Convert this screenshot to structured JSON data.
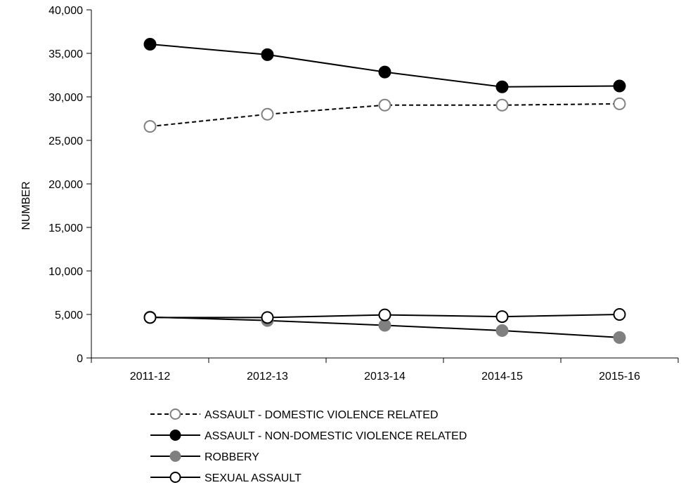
{
  "chart_data": {
    "type": "line",
    "title": "",
    "xlabel": "",
    "ylabel": "NUMBER",
    "ylim": [
      0,
      40000
    ],
    "y_ticks": [
      0,
      5000,
      10000,
      15000,
      20000,
      25000,
      30000,
      35000,
      40000
    ],
    "y_tick_labels": [
      "0",
      "5,000",
      "10,000",
      "15,000",
      "20,000",
      "25,000",
      "30,000",
      "35,000",
      "40,000"
    ],
    "categories": [
      "2011-12",
      "2012-13",
      "2013-14",
      "2014-15",
      "2015-16"
    ],
    "grid": false,
    "legend_position": "bottom",
    "series": [
      {
        "name": "ASSAULT - DOMESTIC VIOLENCE RELATED",
        "values": [
          26600,
          28000,
          29050,
          29050,
          29200
        ],
        "line_style": "dashed",
        "line_color": "#000000",
        "marker_fill": "#ffffff",
        "marker_stroke": "#808080"
      },
      {
        "name": "ASSAULT - NON-DOMESTIC VIOLENCE RELATED",
        "values": [
          36050,
          34850,
          32850,
          31150,
          31250
        ],
        "line_style": "solid",
        "line_color": "#000000",
        "marker_fill": "#000000",
        "marker_stroke": "#000000"
      },
      {
        "name": "ROBBERY",
        "values": [
          4700,
          4300,
          3750,
          3150,
          2350
        ],
        "line_style": "solid",
        "line_color": "#000000",
        "marker_fill": "#808080",
        "marker_stroke": "#808080"
      },
      {
        "name": "SEXUAL ASSAULT",
        "values": [
          4650,
          4650,
          4950,
          4750,
          5000
        ],
        "line_style": "solid",
        "line_color": "#000000",
        "marker_fill": "#ffffff",
        "marker_stroke": "#000000"
      }
    ]
  }
}
